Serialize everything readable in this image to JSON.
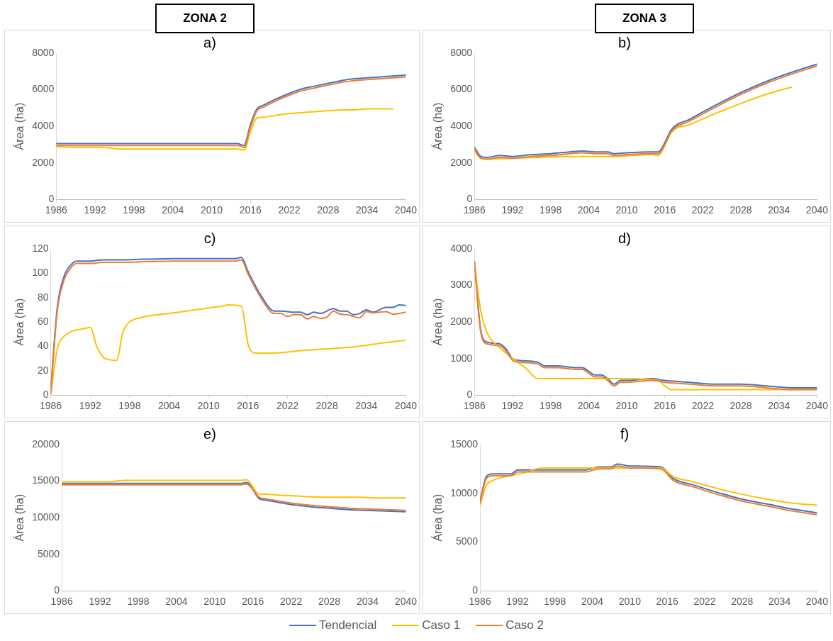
{
  "chart_data": [
    {
      "type": "line",
      "title": "a)",
      "annotations": [
        "ZONA 2"
      ],
      "ylabel": "Área (ha)",
      "xlim": [
        1986,
        2040
      ],
      "xticks": [
        1986,
        1992,
        1998,
        2004,
        2010,
        2016,
        2022,
        2028,
        2034,
        2040
      ],
      "ylim": [
        0,
        8000
      ],
      "yticks": [
        0,
        2000,
        4000,
        6000,
        8000
      ],
      "grid": false,
      "marker": "none",
      "line_style": "solid",
      "series": [
        {
          "color": "#4472c4",
          "x": [
            1986,
            1988,
            2014,
            2015,
            2016,
            2017,
            2018,
            2020,
            2022,
            2024,
            2026,
            2028,
            2030,
            2032,
            2034,
            2036,
            2038,
            2040
          ],
          "values": [
            3050,
            3050,
            3050,
            2950,
            4100,
            4950,
            5150,
            5500,
            5800,
            6050,
            6200,
            6350,
            6500,
            6600,
            6650,
            6700,
            6750,
            6800
          ]
        },
        {
          "color": "#ffc000",
          "x": [
            1986,
            1988,
            1993,
            1996,
            2014,
            2015,
            2016,
            2017,
            2018,
            2020,
            2022,
            2024,
            2026,
            2028,
            2030,
            2032,
            2034,
            2036,
            2038
          ],
          "values": [
            2900,
            2850,
            2850,
            2750,
            2750,
            2700,
            3700,
            4450,
            4500,
            4600,
            4700,
            4750,
            4800,
            4850,
            4900,
            4900,
            4950,
            4950,
            4950
          ]
        },
        {
          "color": "#ed7d31",
          "x": [
            1986,
            1988,
            2014,
            2015,
            2016,
            2017,
            2018,
            2020,
            2022,
            2024,
            2026,
            2028,
            2030,
            2032,
            2034,
            2036,
            2038,
            2040
          ],
          "values": [
            2950,
            2950,
            2950,
            2850,
            3950,
            4850,
            5050,
            5400,
            5700,
            5950,
            6100,
            6250,
            6400,
            6500,
            6550,
            6600,
            6650,
            6700
          ]
        }
      ]
    },
    {
      "type": "line",
      "title": "b)",
      "annotations": [
        "ZONA 3"
      ],
      "ylabel": "Área (ha)",
      "xlim": [
        1986,
        2040
      ],
      "xticks": [
        1986,
        1992,
        1998,
        2004,
        2010,
        2016,
        2022,
        2028,
        2034,
        2040
      ],
      "ylim": [
        0,
        8000
      ],
      "yticks": [
        0,
        2000,
        4000,
        6000,
        8000
      ],
      "grid": false,
      "marker": "none",
      "line_style": "solid",
      "series": [
        {
          "color": "#4472c4",
          "x": [
            1986,
            1987,
            1988,
            1990,
            1992,
            1995,
            1998,
            2001,
            2003,
            2005,
            2007,
            2008,
            2010,
            2014,
            2015,
            2016,
            2017,
            2020,
            2024,
            2028,
            2032,
            2036,
            2040
          ],
          "values": [
            2850,
            2350,
            2300,
            2400,
            2350,
            2450,
            2500,
            2600,
            2650,
            2600,
            2600,
            2500,
            2550,
            2600,
            2600,
            3100,
            3800,
            4400,
            5150,
            5850,
            6450,
            6950,
            7400
          ]
        },
        {
          "color": "#ffc000",
          "x": [
            1986,
            1987,
            1988,
            1992,
            1996,
            2000,
            2008,
            2014,
            2015,
            2016,
            2017,
            2020,
            2024,
            2028,
            2032,
            2036
          ],
          "values": [
            2650,
            2250,
            2200,
            2250,
            2300,
            2350,
            2350,
            2450,
            2400,
            2950,
            3650,
            4100,
            4700,
            5250,
            5750,
            6150
          ]
        },
        {
          "color": "#ed7d31",
          "x": [
            1986,
            1987,
            1988,
            1990,
            1992,
            1995,
            1998,
            2001,
            2003,
            2005,
            2007,
            2008,
            2010,
            2014,
            2015,
            2016,
            2017,
            2020,
            2024,
            2028,
            2032,
            2036,
            2040
          ],
          "values": [
            2750,
            2250,
            2200,
            2300,
            2250,
            2350,
            2400,
            2500,
            2550,
            2500,
            2500,
            2400,
            2450,
            2500,
            2500,
            3000,
            3700,
            4300,
            5050,
            5750,
            6350,
            6850,
            7300
          ]
        }
      ]
    },
    {
      "type": "line",
      "title": "c)",
      "ylabel": "Área (ha)",
      "xlim": [
        1986,
        2040
      ],
      "xticks": [
        1986,
        1992,
        1998,
        2004,
        2010,
        2016,
        2022,
        2028,
        2034,
        2040
      ],
      "ylim": [
        0,
        120
      ],
      "yticks": [
        0,
        20,
        40,
        60,
        80,
        100,
        120
      ],
      "grid": false,
      "marker": "none",
      "line_style": "solid",
      "series": [
        {
          "color": "#4472c4",
          "x": [
            1986,
            1987,
            1988,
            1989,
            1990,
            1992,
            1994,
            1997,
            2000,
            2005,
            2014,
            2015,
            2016,
            2018,
            2020,
            2021,
            2023,
            2024,
            2025,
            2026,
            2027,
            2029,
            2030,
            2031,
            2032,
            2033,
            2034,
            2035,
            2037,
            2038,
            2039,
            2040
          ],
          "values": [
            4,
            72,
            97,
            106.5,
            110,
            110,
            111,
            111,
            111.5,
            112,
            112,
            113,
            101.5,
            81.5,
            69,
            69,
            68,
            68,
            66,
            68,
            67,
            71,
            69,
            69,
            66,
            67,
            70,
            68,
            72,
            72,
            74,
            73.5
          ]
        },
        {
          "color": "#ffc000",
          "x": [
            1986,
            1987,
            1988,
            1989,
            1991,
            1992,
            1993,
            1994,
            1995,
            1996,
            1997,
            1998,
            2000,
            2004,
            2008,
            2012,
            2013,
            2015,
            2016,
            2017,
            2020,
            2024,
            2028,
            2032,
            2036,
            2040
          ],
          "values": [
            0,
            38,
            48,
            52,
            54.5,
            55.5,
            40,
            31,
            29,
            28.5,
            52,
            60,
            64,
            67,
            70,
            73,
            74,
            73,
            42,
            34.5,
            34.5,
            36.5,
            38,
            39.5,
            42.5,
            45
          ]
        },
        {
          "color": "#ed7d31",
          "x": [
            1986,
            1987,
            1988,
            1989,
            1990,
            1992,
            1994,
            1997,
            2000,
            2005,
            2014,
            2015,
            2016,
            2018,
            2020,
            2021,
            2022,
            2023,
            2024,
            2025,
            2026,
            2027,
            2028,
            2029,
            2030,
            2031,
            2033,
            2034,
            2035,
            2037,
            2038,
            2040
          ],
          "values": [
            2,
            69,
            94,
            104,
            108,
            108,
            109,
            109,
            109.5,
            110,
            110,
            111,
            99.5,
            79.5,
            67,
            67,
            64.5,
            66,
            66,
            62.5,
            64.5,
            63,
            64,
            69,
            66.5,
            66,
            63.5,
            68.5,
            67.5,
            68.5,
            66.5,
            68
          ]
        }
      ]
    },
    {
      "type": "line",
      "title": "d)",
      "ylabel": "Área (ha)",
      "xlim": [
        1986,
        2040
      ],
      "xticks": [
        1986,
        1992,
        1998,
        2004,
        2010,
        2016,
        2022,
        2028,
        2034,
        2040
      ],
      "ylim": [
        0,
        4000
      ],
      "yticks": [
        0,
        1000,
        2000,
        3000,
        4000
      ],
      "grid": false,
      "marker": "none",
      "line_style": "solid",
      "series": [
        {
          "color": "#4472c4",
          "x": [
            1986,
            1987,
            1988,
            1990,
            1991,
            1992,
            1993,
            1996,
            1997,
            1999,
            2002,
            2003,
            2004,
            2005,
            2006,
            2007,
            2008,
            2009,
            2010,
            2014,
            2016,
            2020,
            2024,
            2028,
            2032,
            2036,
            2040
          ],
          "values": [
            3650,
            1750,
            1450,
            1400,
            1250,
            1000,
            950,
            900,
            800,
            800,
            750,
            750,
            650,
            550,
            550,
            450,
            300,
            400,
            400,
            450,
            400,
            350,
            300,
            300,
            250,
            200,
            200
          ]
        },
        {
          "color": "#ffc000",
          "x": [
            1986,
            1987,
            1988,
            1990,
            1992,
            1994,
            1996,
            1997,
            2004,
            2010,
            2015,
            2016,
            2017,
            2022,
            2028,
            2034,
            2040
          ],
          "values": [
            3550,
            2300,
            1700,
            1300,
            1000,
            750,
            450,
            450,
            450,
            450,
            400,
            250,
            150,
            150,
            150,
            150,
            150
          ]
        },
        {
          "color": "#ed7d31",
          "x": [
            1986,
            1987,
            1988,
            1990,
            1991,
            1992,
            1993,
            1996,
            1997,
            1999,
            2002,
            2003,
            2004,
            2005,
            2006,
            2007,
            2008,
            2009,
            2010,
            2014,
            2016,
            2020,
            2024,
            2028,
            2032,
            2036,
            2040
          ],
          "values": [
            3600,
            1700,
            1400,
            1350,
            1200,
            950,
            900,
            850,
            750,
            750,
            700,
            700,
            600,
            500,
            500,
            400,
            250,
            350,
            350,
            400,
            350,
            300,
            250,
            250,
            200,
            150,
            150
          ]
        }
      ]
    },
    {
      "type": "line",
      "title": "e)",
      "ylabel": "Área (ha)",
      "xlim": [
        1986,
        2040
      ],
      "xticks": [
        1986,
        1992,
        1998,
        2004,
        2010,
        2016,
        2022,
        2028,
        2034,
        2040
      ],
      "ylim": [
        0,
        20000
      ],
      "yticks": [
        0,
        5000,
        10000,
        15000,
        20000
      ],
      "grid": false,
      "marker": "none",
      "line_style": "solid",
      "series": [
        {
          "color": "#4472c4",
          "x": [
            1986,
            1988,
            2014,
            2015,
            2017,
            2018,
            2020,
            2022,
            2025,
            2028,
            2031,
            2034,
            2037,
            2040
          ],
          "values": [
            14700,
            14700,
            14700,
            14800,
            12600,
            12400,
            12100,
            11800,
            11500,
            11300,
            11100,
            11000,
            10900,
            10800
          ]
        },
        {
          "color": "#ffc000",
          "x": [
            1986,
            1988,
            1993,
            1996,
            2014,
            2015,
            2017,
            2018,
            2020,
            2024,
            2028,
            2032,
            2036,
            2040
          ],
          "values": [
            14900,
            14900,
            14900,
            15100,
            15100,
            15200,
            13200,
            13200,
            13100,
            12900,
            12800,
            12800,
            12700,
            12700
          ]
        },
        {
          "color": "#ed7d31",
          "x": [
            1986,
            1988,
            2014,
            2015,
            2017,
            2018,
            2020,
            2022,
            2025,
            2028,
            2031,
            2034,
            2037,
            2040
          ],
          "values": [
            14500,
            14500,
            14500,
            14600,
            12800,
            12600,
            12300,
            12000,
            11700,
            11500,
            11300,
            11200,
            11100,
            11000
          ]
        }
      ]
    },
    {
      "type": "line",
      "title": "f)",
      "ylabel": "Área (ha)",
      "xlim": [
        1986,
        2040
      ],
      "xticks": [
        1986,
        1992,
        1998,
        2004,
        2010,
        2016,
        2022,
        2028,
        2034,
        2040
      ],
      "ylim": [
        0,
        15000
      ],
      "yticks": [
        0,
        5000,
        10000,
        15000
      ],
      "grid": false,
      "marker": "none",
      "line_style": "solid",
      "legend": "bottom",
      "series": [
        {
          "name": "Tendencial",
          "color": "#4472c4",
          "x": [
            1986,
            1987,
            1988,
            1991,
            1992,
            1996,
            2003,
            2005,
            2007,
            2008,
            2010,
            2015,
            2017,
            2020,
            2024,
            2028,
            2032,
            2036,
            2040
          ],
          "values": [
            9200,
            11700,
            12000,
            12000,
            12400,
            12400,
            12400,
            12700,
            12700,
            13000,
            12800,
            12700,
            11500,
            10900,
            10100,
            9400,
            8900,
            8400,
            8000
          ]
        },
        {
          "name": "Caso 1",
          "color": "#ffc000",
          "x": [
            1986,
            1987,
            1988,
            1990,
            1993,
            1996,
            2015,
            2017,
            2020,
            2024,
            2028,
            2032,
            2036,
            2040
          ],
          "values": [
            8800,
            10800,
            11300,
            11700,
            12100,
            12600,
            12600,
            11700,
            11200,
            10500,
            9900,
            9400,
            9000,
            8800
          ]
        },
        {
          "name": "Caso 2",
          "color": "#ed7d31",
          "x": [
            1986,
            1987,
            1988,
            1991,
            1992,
            1996,
            2003,
            2005,
            2007,
            2008,
            2010,
            2015,
            2017,
            2020,
            2024,
            2028,
            2032,
            2036,
            2040
          ],
          "values": [
            9000,
            11500,
            11800,
            11800,
            12200,
            12200,
            12200,
            12500,
            12500,
            12800,
            12600,
            12500,
            11300,
            10700,
            9900,
            9200,
            8700,
            8200,
            7800
          ]
        }
      ]
    }
  ]
}
